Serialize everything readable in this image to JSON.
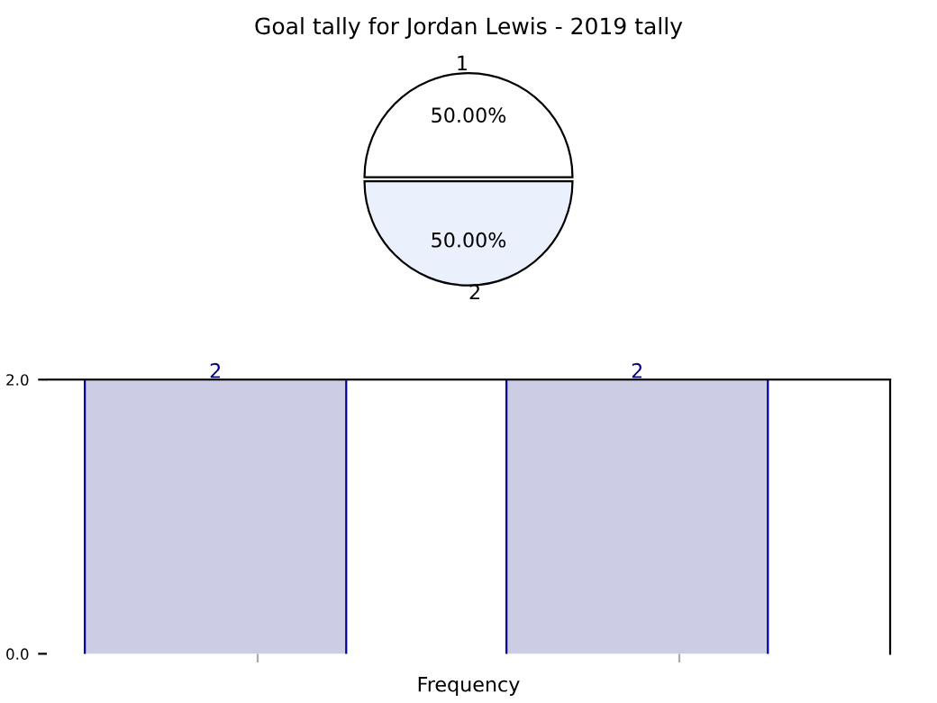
{
  "chart_data": [
    {
      "type": "pie",
      "title": "Goal tally for Jordan Lewis - 2019 tally",
      "categories": [
        "1",
        "2"
      ],
      "values": [
        50,
        50
      ],
      "colors": [
        "#ffffff",
        "#eaf0fc"
      ],
      "value_labels": [
        "50.00%",
        "50.00%"
      ]
    },
    {
      "type": "bar",
      "xlabel": "Frequency",
      "categories": [
        null,
        null
      ],
      "ylim": [
        0,
        2
      ],
      "yticks": [
        {
          "value": 0,
          "label": "0.0"
        },
        {
          "value": 2,
          "label": "2.0"
        }
      ],
      "grid": false,
      "series": [
        {
          "color": "#ccccE4",
          "values": [
            2,
            2
          ],
          "value_labels": [
            "2",
            "2"
          ]
        }
      ]
    }
  ]
}
